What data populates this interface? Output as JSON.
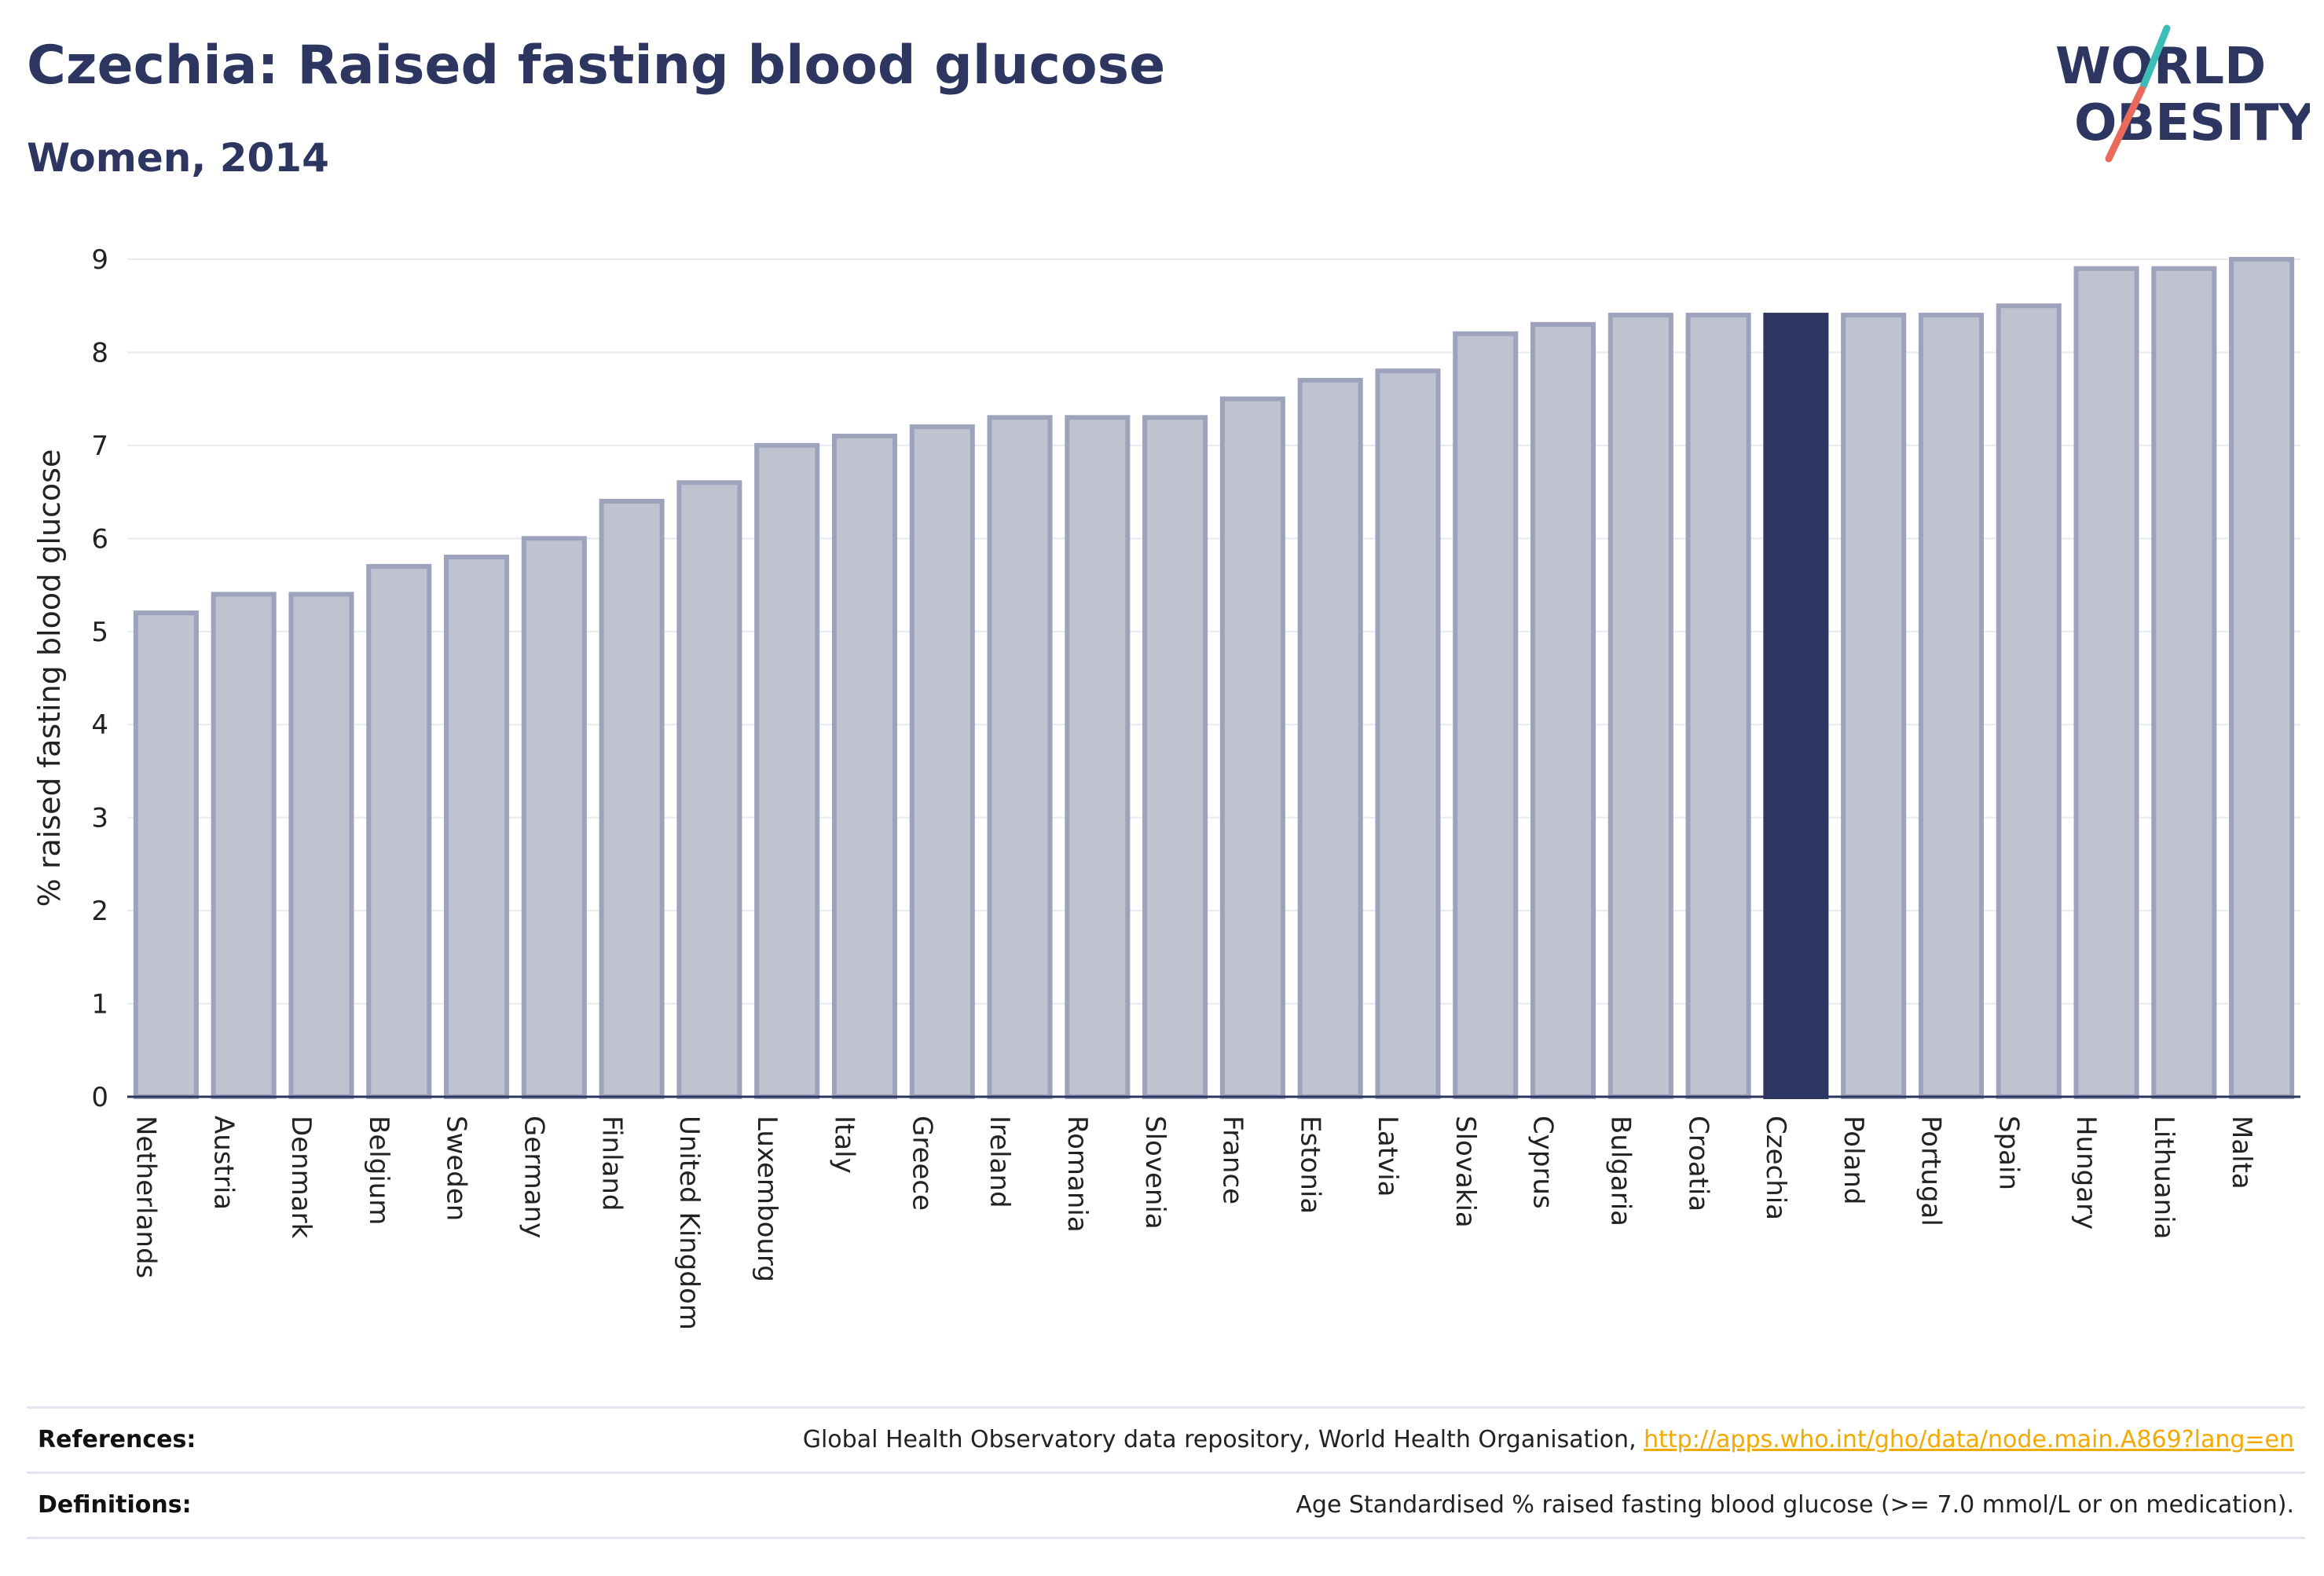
{
  "header": {
    "title": "Czechia: Raised fasting blood glucose",
    "subtitle": "Women, 2014"
  },
  "logo": {
    "line1": "WORLD",
    "line2": "OBESITY",
    "colors": {
      "text": "#2d3660",
      "slash_top": "#3dbdb6",
      "slash_bottom": "#e96a5b"
    }
  },
  "chart_data": {
    "type": "bar",
    "ylabel": "% raised fasting blood glucose",
    "xlabel": "",
    "ylim": [
      0,
      9
    ],
    "yticks": [
      0,
      1,
      2,
      3,
      4,
      5,
      6,
      7,
      8,
      9
    ],
    "grid": true,
    "highlight": "Czechia",
    "colors": {
      "bar_fill": "#bfc2cf",
      "bar_stroke": "#9da3bb",
      "highlight_fill": "#2d3660",
      "grid": "#e8eaf1",
      "axis": "#2d3660"
    },
    "categories": [
      "Netherlands",
      "Austria",
      "Denmark",
      "Belgium",
      "Sweden",
      "Germany",
      "Finland",
      "United Kingdom",
      "Luxembourg",
      "Italy",
      "Greece",
      "Ireland",
      "Romania",
      "Slovenia",
      "France",
      "Estonia",
      "Latvia",
      "Slovakia",
      "Cyprus",
      "Bulgaria",
      "Croatia",
      "Czechia",
      "Poland",
      "Portugal",
      "Spain",
      "Hungary",
      "Lithuania",
      "Malta"
    ],
    "values": [
      5.2,
      5.4,
      5.4,
      5.7,
      5.8,
      6.0,
      6.4,
      6.6,
      7.0,
      7.1,
      7.2,
      7.3,
      7.3,
      7.3,
      7.5,
      7.7,
      7.8,
      8.2,
      8.3,
      8.4,
      8.4,
      8.4,
      8.4,
      8.4,
      8.5,
      8.9,
      8.9,
      9.0
    ]
  },
  "references": {
    "label": "References:",
    "text": "Global Health Observatory data repository, World Health Organisation, ",
    "link": "http://apps.who.int/gho/data/node.main.A869?lang=en"
  },
  "definitions": {
    "label": "Definitions:",
    "text": "Age Standardised % raised fasting blood glucose (>= 7.0 mmol/L or on medication)."
  }
}
